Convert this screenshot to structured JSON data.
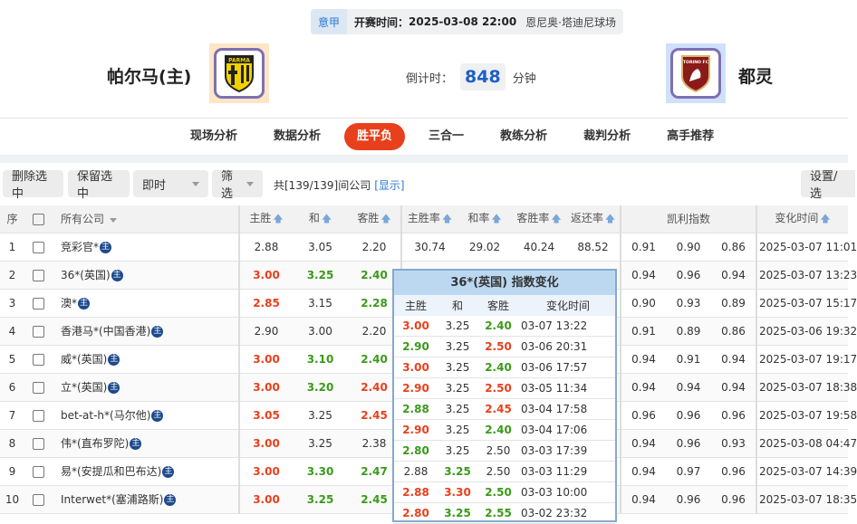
{
  "match": {
    "league": "意甲",
    "start_label": "开赛时间：",
    "start_time": "2025-03-08 22:00",
    "venue": "恩尼奥·塔迪尼球场",
    "home": "帕尔马(主)",
    "away": "都灵",
    "home_logo_text": "PARMA",
    "away_logo_text": "TORINO FC",
    "countdown_label": "倒计时：",
    "countdown_value": "848",
    "countdown_unit": "分钟"
  },
  "nav": [
    {
      "label": "现场分析"
    },
    {
      "label": "数据分析"
    },
    {
      "label": "胜平负",
      "active": true
    },
    {
      "label": "三合一"
    },
    {
      "label": "教练分析"
    },
    {
      "label": "裁判分析"
    },
    {
      "label": "高手推荐"
    }
  ],
  "toolbar": {
    "delete": "删除选中",
    "keep": "保留选中",
    "mode": "即时",
    "filter": "筛选",
    "count_text": "共[139/139]间公司",
    "show": "[显示]",
    "settings": "设置/选"
  },
  "table": {
    "headers": {
      "idx": "序",
      "company": "所有公司",
      "home": "主胜",
      "draw": "和",
      "away": "客胜",
      "home_rate": "主胜率",
      "draw_rate": "和率",
      "away_rate": "客胜率",
      "return_rate": "返还率",
      "kelly": "凯利指数",
      "time": "变化时间"
    },
    "badge": "主",
    "rows": [
      {
        "idx": "1",
        "company": "竞彩官*",
        "home": [
          "2.88",
          ""
        ],
        "draw": [
          "3.05",
          ""
        ],
        "away": [
          "2.20",
          ""
        ],
        "rates": [
          "30.74",
          "29.02",
          "40.24",
          "88.52"
        ],
        "kelly": [
          "0.91",
          "0.90",
          "0.86"
        ],
        "time": "2025-03-07 11:01"
      },
      {
        "idx": "2",
        "company": "36*(英国)",
        "home": [
          "3.00",
          "up"
        ],
        "draw": [
          "3.25",
          "down"
        ],
        "away": [
          "2.40",
          "down"
        ],
        "kelly": [
          "0.94",
          "0.96",
          "0.94"
        ],
        "time": "2025-03-07 13:23"
      },
      {
        "idx": "3",
        "company": "澳*",
        "home": [
          "2.85",
          "up"
        ],
        "draw": [
          "3.15",
          ""
        ],
        "away": [
          "2.28",
          "down"
        ],
        "kelly": [
          "0.90",
          "0.93",
          "0.89"
        ],
        "time": "2025-03-07 15:17"
      },
      {
        "idx": "4",
        "company": "香港马*(中国香港)",
        "home": [
          "2.90",
          ""
        ],
        "draw": [
          "3.00",
          ""
        ],
        "away": [
          "2.20",
          ""
        ],
        "kelly": [
          "0.91",
          "0.89",
          "0.86"
        ],
        "time": "2025-03-06 19:32"
      },
      {
        "idx": "5",
        "company": "威*(英国)",
        "home": [
          "3.00",
          "up"
        ],
        "draw": [
          "3.10",
          "down"
        ],
        "away": [
          "2.40",
          "down"
        ],
        "kelly": [
          "0.94",
          "0.91",
          "0.94"
        ],
        "time": "2025-03-07 19:17"
      },
      {
        "idx": "6",
        "company": "立*(英国)",
        "home": [
          "3.00",
          "up"
        ],
        "draw": [
          "3.20",
          "down"
        ],
        "away": [
          "2.40",
          "up"
        ],
        "kelly": [
          "0.94",
          "0.94",
          "0.94"
        ],
        "time": "2025-03-07 18:38"
      },
      {
        "idx": "7",
        "company": "bet-at-h*(马尔他)",
        "home": [
          "3.05",
          "up"
        ],
        "draw": [
          "3.25",
          ""
        ],
        "away": [
          "2.45",
          "up"
        ],
        "kelly": [
          "0.96",
          "0.96",
          "0.96"
        ],
        "time": "2025-03-07 19:58"
      },
      {
        "idx": "8",
        "company": "伟*(直布罗陀)",
        "home": [
          "3.00",
          "up"
        ],
        "draw": [
          "3.25",
          ""
        ],
        "away": [
          "2.38",
          ""
        ],
        "kelly": [
          "0.94",
          "0.96",
          "0.93"
        ],
        "time": "2025-03-08 04:47"
      },
      {
        "idx": "9",
        "company": "易*(安提瓜和巴布达)",
        "home": [
          "3.00",
          "up"
        ],
        "draw": [
          "3.30",
          "down"
        ],
        "away": [
          "2.47",
          "down"
        ],
        "kelly": [
          "0.94",
          "0.97",
          "0.96"
        ],
        "time": "2025-03-07 14:39"
      },
      {
        "idx": "10",
        "company": "Interwet*(塞浦路斯)",
        "home": [
          "3.00",
          "up"
        ],
        "draw": [
          "3.25",
          "down"
        ],
        "away": [
          "2.45",
          "down"
        ],
        "kelly": [
          "0.94",
          "0.96",
          "0.96"
        ],
        "time": "2025-03-07 18:35"
      }
    ]
  },
  "popup": {
    "title": "36*(英国) 指数变化",
    "headers": [
      "主胜",
      "和",
      "客胜",
      "变化时间"
    ],
    "rows": [
      {
        "home": [
          "3.00",
          "up"
        ],
        "draw": [
          "3.25",
          ""
        ],
        "away": [
          "2.40",
          "down"
        ],
        "time": "03-07 13:22"
      },
      {
        "home": [
          "2.90",
          "down"
        ],
        "draw": [
          "3.25",
          ""
        ],
        "away": [
          "2.50",
          "up"
        ],
        "time": "03-06 20:31"
      },
      {
        "home": [
          "3.00",
          "up"
        ],
        "draw": [
          "3.25",
          ""
        ],
        "away": [
          "2.40",
          "down"
        ],
        "time": "03-06 17:57"
      },
      {
        "home": [
          "2.90",
          "up"
        ],
        "draw": [
          "3.25",
          ""
        ],
        "away": [
          "2.50",
          "up"
        ],
        "time": "03-05 11:34"
      },
      {
        "home": [
          "2.88",
          "down"
        ],
        "draw": [
          "3.25",
          ""
        ],
        "away": [
          "2.45",
          "up"
        ],
        "time": "03-04 17:58"
      },
      {
        "home": [
          "2.90",
          "up"
        ],
        "draw": [
          "3.25",
          ""
        ],
        "away": [
          "2.40",
          "down"
        ],
        "time": "03-04 17:06"
      },
      {
        "home": [
          "2.80",
          "down"
        ],
        "draw": [
          "3.25",
          ""
        ],
        "away": [
          "2.50",
          ""
        ],
        "time": "03-03 17:39"
      },
      {
        "home": [
          "2.88",
          ""
        ],
        "draw": [
          "3.25",
          "down"
        ],
        "away": [
          "2.50",
          ""
        ],
        "time": "03-03 11:29"
      },
      {
        "home": [
          "2.88",
          "up"
        ],
        "draw": [
          "3.30",
          "up"
        ],
        "away": [
          "2.50",
          "down"
        ],
        "time": "03-03 10:00"
      },
      {
        "home": [
          "2.80",
          "up"
        ],
        "draw": [
          "3.25",
          "down"
        ],
        "away": [
          "2.55",
          "down"
        ],
        "time": "03-02 23:32"
      }
    ]
  },
  "colors": {
    "up": "#e8401c",
    "down": "#3a9a1a",
    "accent": "#e8401c",
    "link": "#2a7ad6"
  }
}
